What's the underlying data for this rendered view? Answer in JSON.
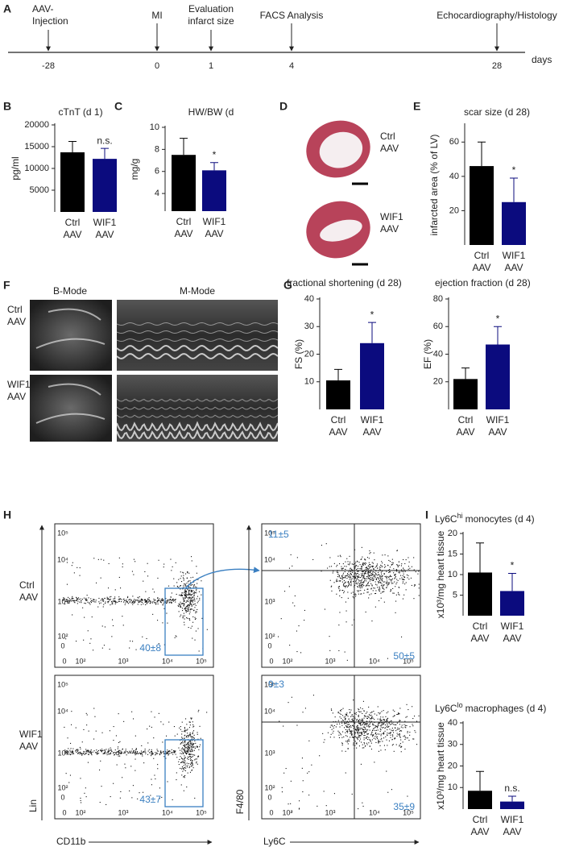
{
  "panel_labels": [
    "A",
    "B",
    "C",
    "D",
    "E",
    "F",
    "G",
    "H",
    "I"
  ],
  "timeline": {
    "events": [
      {
        "lines": [
          "AAV-",
          "Injection"
        ],
        "day": -28
      },
      {
        "lines": [
          "MI"
        ],
        "day": 0
      },
      {
        "lines": [
          "Evaluation",
          "infarct size"
        ],
        "day": 1
      },
      {
        "lines": [
          "FACS Analysis"
        ],
        "day": 4
      },
      {
        "lines": [
          "Echocardiography/Histology"
        ],
        "day": 28
      }
    ],
    "unit": "days"
  },
  "histology": {
    "labels": [
      [
        "Ctrl",
        "AAV"
      ],
      [
        "WIF1",
        "AAV"
      ]
    ]
  },
  "echo": {
    "columns": [
      "B-Mode",
      "M-Mode"
    ],
    "rows": [
      [
        "Ctrl",
        "AAV"
      ],
      [
        "WIF1",
        "AAV"
      ]
    ]
  },
  "facs": {
    "rows": [
      [
        "Ctrl",
        "AAV"
      ],
      [
        "WIF1",
        "AAV"
      ]
    ],
    "axes": {
      "x1": "CD11b",
      "y1": "Lin",
      "x2": "Ly6C",
      "y2": "F4/80"
    },
    "ticks": [
      "0",
      "10²",
      "10³",
      "10⁴",
      "10⁵"
    ],
    "gates": [
      "40±8",
      "11±5",
      "50±5",
      "43±7",
      "9±3",
      "35±9"
    ]
  },
  "chart_data": [
    {
      "type": "bar",
      "title": "cTnT (d 1)",
      "ylabel": "pg/ml",
      "categories": [
        [
          "Ctrl",
          "AAV"
        ],
        [
          "WIF1",
          "AAV"
        ]
      ],
      "values": [
        13700,
        12200
      ],
      "errors": [
        2500,
        2400
      ],
      "colors": [
        "#000000",
        "#0b0b7e"
      ],
      "ylim": [
        0,
        20000
      ],
      "yticks": [
        5000,
        10000,
        15000,
        20000
      ],
      "annotation": "n.s."
    },
    {
      "type": "bar",
      "title": "HW/BW (d",
      "ylabel": "mg/g",
      "categories": [
        [
          "Ctrl",
          "AAV"
        ],
        [
          "WIF1",
          "AAV"
        ]
      ],
      "values": [
        7.5,
        6.1
      ],
      "errors": [
        1.5,
        0.7
      ],
      "colors": [
        "#000000",
        "#0b0b7e"
      ],
      "ylim": [
        2.4,
        10
      ],
      "yticks": [
        4,
        6,
        8,
        10
      ],
      "annotation": "*"
    },
    {
      "type": "bar",
      "title": "scar size (d 28)",
      "ylabel": "infarcted area (% of LV)",
      "categories": [
        [
          "Ctrl",
          "AAV"
        ],
        [
          "WIF1",
          "AAV"
        ]
      ],
      "values": [
        46,
        25
      ],
      "errors": [
        14,
        14
      ],
      "colors": [
        "#000000",
        "#0b0b7e"
      ],
      "ylim": [
        0,
        70
      ],
      "yticks": [
        20,
        40,
        60
      ],
      "annotation": "*"
    },
    {
      "type": "bar",
      "title": "fractional shortening (d 28)",
      "ylabel": "FS (%)",
      "categories": [
        [
          "Ctrl",
          "AAV"
        ],
        [
          "WIF1",
          "AAV"
        ]
      ],
      "values": [
        10.5,
        24
      ],
      "errors": [
        4,
        7.5
      ],
      "colors": [
        "#000000",
        "#0b0b7e"
      ],
      "ylim": [
        0,
        40
      ],
      "yticks": [
        10,
        20,
        30,
        40
      ],
      "annotation": "*"
    },
    {
      "type": "bar",
      "title": "ejection fraction (d 28)",
      "ylabel": "EF (%)",
      "categories": [
        [
          "Ctrl",
          "AAV"
        ],
        [
          "WIF1",
          "AAV"
        ]
      ],
      "values": [
        22,
        47
      ],
      "errors": [
        8,
        13
      ],
      "colors": [
        "#000000",
        "#0b0b7e"
      ],
      "ylim": [
        0,
        80
      ],
      "yticks": [
        20,
        40,
        60,
        80
      ],
      "annotation": "*"
    },
    {
      "type": "bar",
      "title": "Ly6C",
      "title_sup": "hi",
      "title_rest": "monocytes (d 4)",
      "ylabel": "x10³/mg heart tissue",
      "categories": [
        [
          "Ctrl",
          "AAV"
        ],
        [
          "WIF1",
          "AAV"
        ]
      ],
      "values": [
        10.5,
        6
      ],
      "errors": [
        7.2,
        4.3
      ],
      "colors": [
        "#000000",
        "#0b0b7e"
      ],
      "ylim": [
        0,
        20
      ],
      "yticks": [
        5,
        10,
        15,
        20
      ],
      "annotation": "*"
    },
    {
      "type": "bar",
      "title": "Ly6C",
      "title_sup": "lo",
      "title_rest": "macrophages (d 4)",
      "ylabel": "x10³/mg heart tissue",
      "categories": [
        [
          "Ctrl",
          "AAV"
        ],
        [
          "WIF1",
          "AAV"
        ]
      ],
      "values": [
        8.5,
        3.5
      ],
      "errors": [
        9,
        2.5
      ],
      "colors": [
        "#000000",
        "#0b0b7e"
      ],
      "ylim": [
        0,
        40
      ],
      "yticks": [
        10,
        20,
        30,
        40
      ],
      "annotation": "n.s."
    }
  ]
}
